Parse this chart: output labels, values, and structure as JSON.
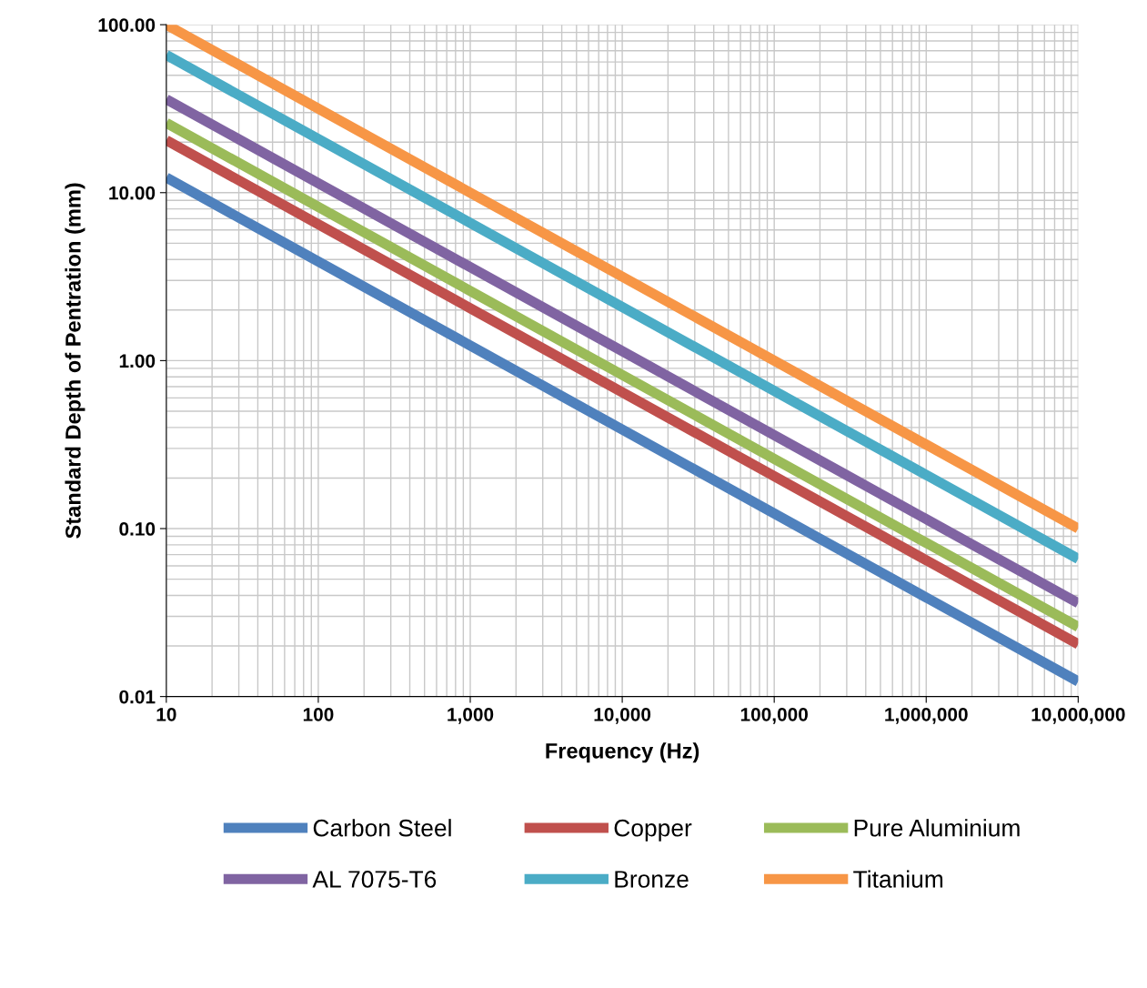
{
  "chart_data": {
    "type": "line",
    "xlabel": "Frequency (Hz)",
    "ylabel": "Standard Depth of Pentration (mm)",
    "x": [
      10,
      10000000
    ],
    "series": [
      {
        "name": "Carbon Steel",
        "color": "#4f81bd",
        "values": [
          12.3,
          0.0123
        ]
      },
      {
        "name": "Copper",
        "color": "#c0504d",
        "values": [
          20.5,
          0.0205
        ]
      },
      {
        "name": "Pure Aluminium",
        "color": "#9bbb59",
        "values": [
          26,
          0.026
        ]
      },
      {
        "name": "AL 7075-T6",
        "color": "#8064a2",
        "values": [
          36,
          0.036
        ]
      },
      {
        "name": "Bronze",
        "color": "#4bacc6",
        "values": [
          66,
          0.066
        ]
      },
      {
        "name": "Titanium",
        "color": "#f79646",
        "values": [
          100,
          0.1
        ]
      }
    ],
    "log": "xy",
    "xlim": [
      10,
      10000000
    ],
    "ylim": [
      0.01,
      100
    ],
    "xticks": [
      10,
      100,
      {
        "value": 1000,
        "label": "1,000"
      },
      {
        "value": 10000,
        "label": "10,000"
      },
      {
        "value": 100000,
        "label": "100,000"
      },
      {
        "value": 1000000,
        "label": "1,000,000"
      },
      {
        "value": 10000000,
        "label": "10,000,000"
      }
    ],
    "yticks": [
      {
        "value": 0.01,
        "label": "0.01"
      },
      {
        "value": 0.1,
        "label": "0.10"
      },
      {
        "value": 1,
        "label": "1.00"
      },
      {
        "value": 10,
        "label": "10.00"
      },
      {
        "value": 100,
        "label": "100.00"
      }
    ],
    "grid": true,
    "legend": "bottom",
    "marker": "none",
    "line_style": "solid"
  }
}
